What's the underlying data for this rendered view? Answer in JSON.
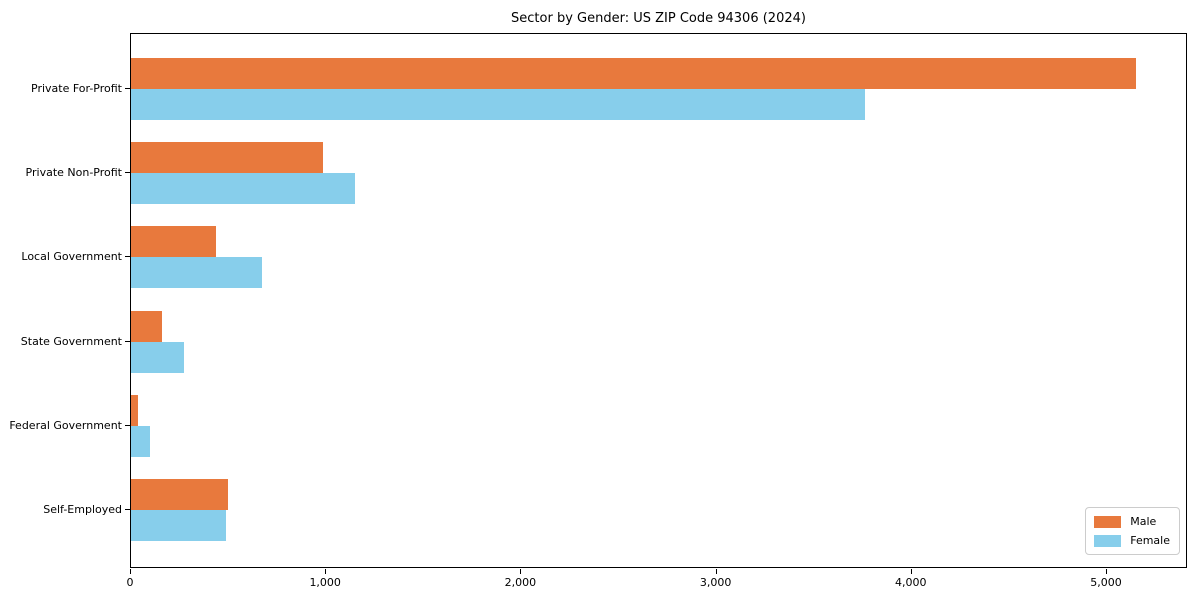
{
  "chart_data": {
    "type": "bar",
    "orientation": "horizontal",
    "title": "Sector by Gender: US ZIP Code 94306 (2024)",
    "categories": [
      "Private For-Profit",
      "Private Non-Profit",
      "Local Government",
      "State Government",
      "Federal Government",
      "Self-Employed"
    ],
    "series": [
      {
        "name": "Male",
        "color": "#e8793d",
        "values": [
          5150,
          985,
          435,
          160,
          35,
          495
        ]
      },
      {
        "name": "Female",
        "color": "#87ceeb",
        "values": [
          3760,
          1150,
          670,
          270,
          95,
          485
        ]
      }
    ],
    "xlabel": "",
    "ylabel": "",
    "xlim": [
      0,
      5415
    ],
    "xticks": [
      0,
      1000,
      2000,
      3000,
      4000,
      5000
    ],
    "xtick_labels": [
      "0",
      "1,000",
      "2,000",
      "3,000",
      "4,000",
      "5,000"
    ],
    "grid": false,
    "legend_position": "lower right"
  },
  "legend": {
    "items": [
      {
        "label": "Male",
        "color": "#e8793d"
      },
      {
        "label": "Female",
        "color": "#87ceeb"
      }
    ]
  }
}
